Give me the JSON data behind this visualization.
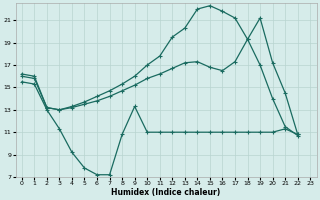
{
  "background_color": "#d6ecea",
  "grid_color": "#b8d4d0",
  "line_color": "#1a6b60",
  "xlabel": "Humidex (Indice chaleur)",
  "xlim": [
    -0.5,
    23.5
  ],
  "ylim": [
    7,
    22.5
  ],
  "xticks": [
    0,
    1,
    2,
    3,
    4,
    5,
    6,
    7,
    8,
    9,
    10,
    11,
    12,
    13,
    14,
    15,
    16,
    17,
    18,
    19,
    20,
    21,
    22,
    23
  ],
  "yticks": [
    7,
    9,
    11,
    13,
    15,
    17,
    19,
    21
  ],
  "line1_x": [
    0,
    1,
    2,
    3,
    4,
    5,
    6,
    7,
    8,
    9,
    10,
    11,
    12,
    13,
    14,
    15,
    16,
    17,
    18,
    19,
    20,
    21,
    22
  ],
  "line1_y": [
    15.5,
    15.3,
    13.0,
    11.3,
    9.2,
    7.8,
    7.2,
    7.2,
    10.8,
    13.3,
    11.0,
    11.0,
    11.0,
    11.0,
    11.0,
    11.0,
    11.0,
    11.0,
    11.0,
    11.0,
    11.0,
    11.3,
    10.8
  ],
  "line2_x": [
    0,
    1,
    2,
    3,
    4,
    5,
    6,
    7,
    8,
    9,
    10,
    11,
    12,
    13,
    14,
    15,
    16,
    17,
    18,
    19,
    20,
    21,
    22
  ],
  "line2_y": [
    16.0,
    15.8,
    13.2,
    13.0,
    13.2,
    13.5,
    13.8,
    14.2,
    14.7,
    15.2,
    15.8,
    16.2,
    16.7,
    17.2,
    17.3,
    16.8,
    16.5,
    17.3,
    19.3,
    17.0,
    14.0,
    11.5,
    10.7
  ],
  "line3_x": [
    0,
    1,
    2,
    3,
    4,
    5,
    6,
    7,
    8,
    9,
    10,
    11,
    12,
    13,
    14,
    15,
    16,
    17,
    18,
    19,
    20,
    21,
    22
  ],
  "line3_y": [
    16.2,
    16.0,
    13.2,
    13.0,
    13.3,
    13.7,
    14.2,
    14.7,
    15.3,
    16.0,
    17.0,
    17.8,
    19.5,
    20.3,
    22.0,
    22.3,
    21.8,
    21.2,
    19.3,
    21.2,
    17.2,
    14.5,
    10.8
  ],
  "marker_size": 3.5,
  "linewidth": 0.9
}
